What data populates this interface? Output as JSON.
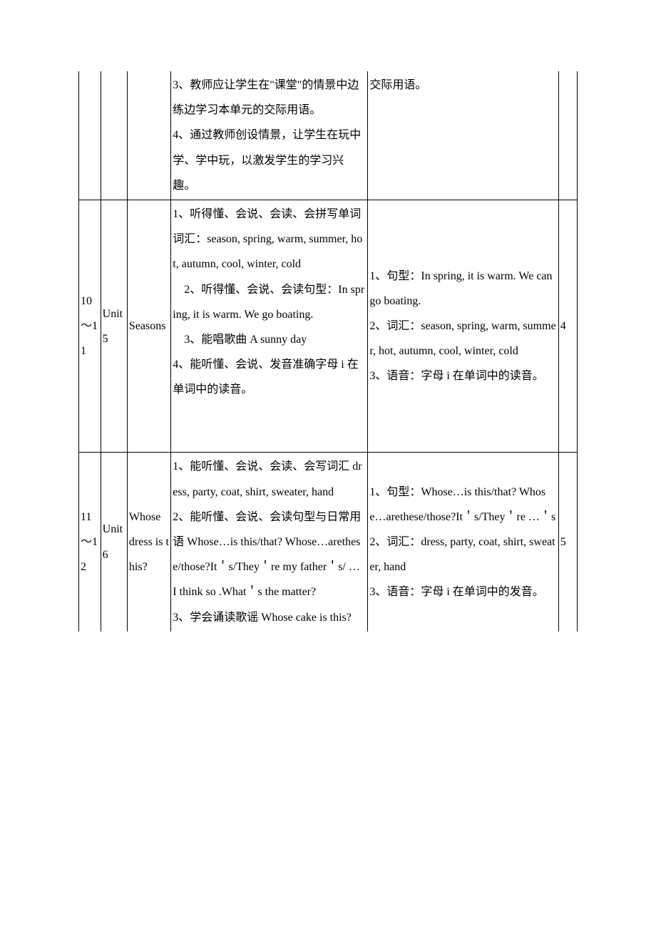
{
  "row0": {
    "objectives": "3、教师应让学生在\"课堂\"的情景中边练边学习本单元的交际用语。\n4、通过教师创设情景，让学生在玩中学、学中玩，以激发学生的学习兴趣。",
    "keypoints": "交际用语。"
  },
  "row1": {
    "week": "10～11",
    "unit": "Unit 5",
    "title": "Seasons",
    "objectives": "1、听得懂、会说、会读、会拼写单词词汇：season, spring, warm, summer, hot, autumn, cool, winter, cold\n　2、听得懂、会说、会读句型：In spring, it is warm. We go boating.\n　3、能唱歌曲 A sunny day\n4、能听懂、会说、发音准确字母 i 在单词中的读音。",
    "keypoints": "1、句型：In spring, it is warm. We can go boating.\n2、词汇：season, spring, warm, summer, hot, autumn, cool, winter, cold\n3、语音：字母 i 在单词中的读音。",
    "hours": "4"
  },
  "row2": {
    "week": "11～12",
    "unit": "Unit 6",
    "title": "Whose dress is this?",
    "objectives": "1、能听懂、会说、会读、会写词汇 dress, party, coat, shirt, sweater, hand\n2、能听懂、会说、会读句型与日常用语 Whose…is this/that? Whose…arethese/those?It＇s/They＇re my father＇s/ … I think so .What＇s the matter?\n3、学会诵读歌谣 Whose cake is this?",
    "keypoints": "1、句型：Whose…is this/that? Whose…arethese/those?It＇s/They＇re …＇s\n2、词汇：dress, party, coat, shirt, sweater, hand\n3、语音：字母 i 在单词中的发音。",
    "hours": "5"
  }
}
